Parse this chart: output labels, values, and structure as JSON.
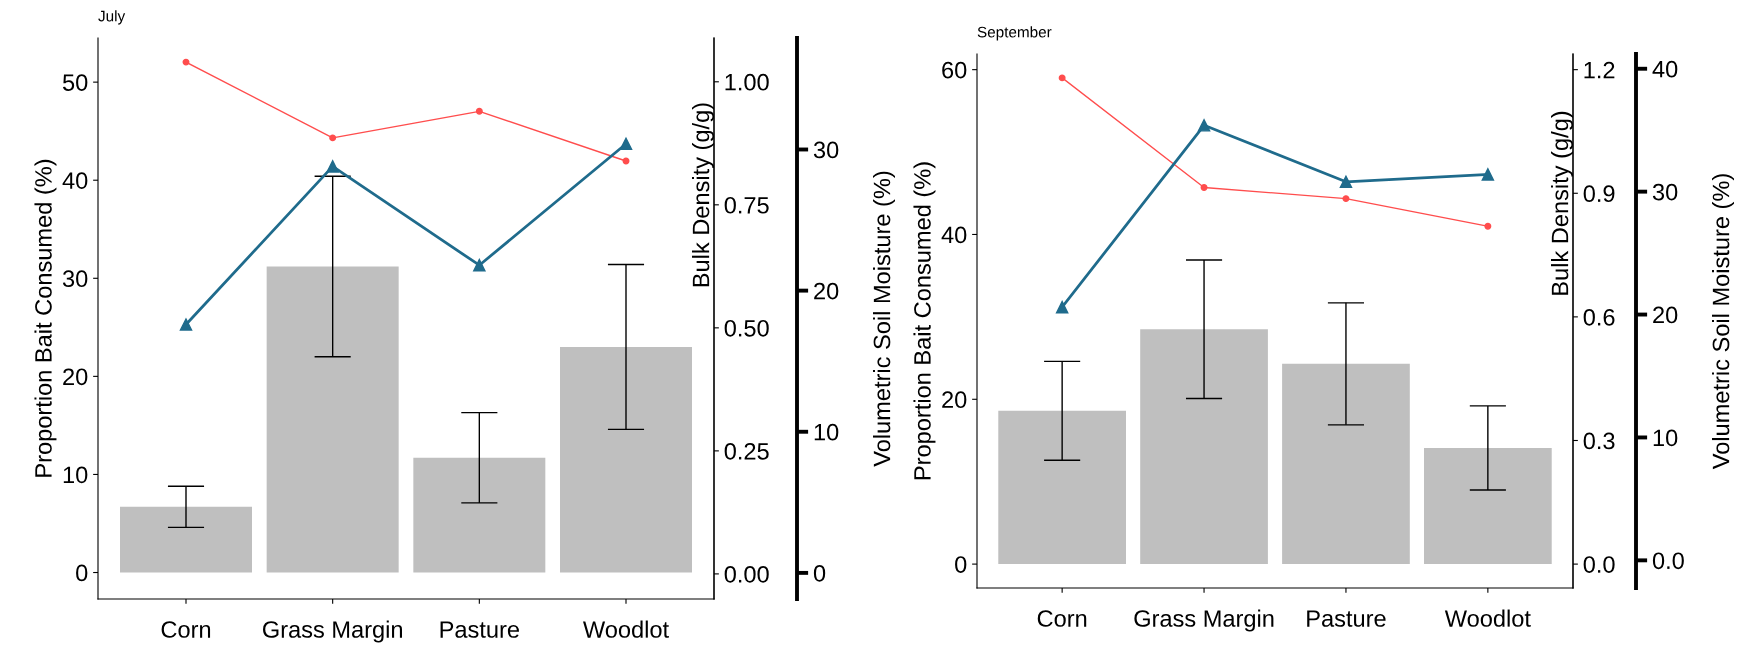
{
  "chart_data": [
    {
      "type": "bar",
      "title": "July",
      "categories": [
        "Corn",
        "Grass Margin",
        "Pasture",
        "Woodlot"
      ],
      "ylabel": "Proportion Bait Consumed (%)",
      "y2label": "Bulk Density (g/g)",
      "y3label": "Volumetric Soil Moisture (%)",
      "ylim": [
        -2.7,
        54.5
      ],
      "yticks": [
        0,
        10,
        20,
        30,
        40,
        50
      ],
      "y2lim": [
        -0.051,
        1.089
      ],
      "y2ticks": [
        {
          "value": 0,
          "label": "0.00"
        },
        {
          "value": 0.25,
          "label": "0.25"
        },
        {
          "value": 0.5,
          "label": "0.50"
        },
        {
          "value": 0.75,
          "label": "0.75"
        },
        {
          "value": 1,
          "label": "1.00"
        }
      ],
      "y3lim": [
        -1.85,
        37.9
      ],
      "y3ticks": [
        0,
        10,
        20,
        30
      ],
      "series": [
        {
          "color": "#bfbfbf",
          "values": [
            6.7,
            31.2,
            11.7,
            23.0
          ],
          "errors": [
            2.1,
            9.2,
            4.6,
            8.4
          ]
        },
        {
          "type": "line",
          "axis": "y2",
          "color": "#ff4d4d",
          "marker": "circle",
          "values": [
            1.04,
            0.886,
            0.94,
            0.839
          ]
        },
        {
          "type": "line",
          "axis": "y3",
          "color": "#1f6b8c",
          "marker": "triangle",
          "values": [
            17.6,
            28.8,
            21.8,
            30.4
          ]
        }
      ]
    },
    {
      "type": "bar",
      "title": "September",
      "categories": [
        "Corn",
        "Grass Margin",
        "Pasture",
        "Woodlot"
      ],
      "ylabel": "Proportion Bait Consumed (%)",
      "y2label": "Bulk Density (g/g)",
      "y3label": "Volumetric Soil Moisture (%)",
      "ylim": [
        -2.9,
        61.9
      ],
      "yticks": [
        0,
        20,
        40,
        60
      ],
      "y2lim": [
        -0.058,
        1.238
      ],
      "y2ticks": [
        {
          "value": 0,
          "label": "0.0"
        },
        {
          "value": 0.3,
          "label": "0.3"
        },
        {
          "value": 0.6,
          "label": "0.6"
        },
        {
          "value": 0.9,
          "label": "0.9"
        },
        {
          "value": 1.2,
          "label": "1.2"
        }
      ],
      "y3lim": [
        -2.25,
        41.2
      ],
      "y3ticks": [
        {
          "value": 0,
          "label": "0.0"
        },
        10,
        20,
        30,
        40
      ],
      "series": [
        {
          "color": "#bfbfbf",
          "values": [
            18.6,
            28.5,
            24.3,
            14.1
          ],
          "errors": [
            6.0,
            8.4,
            7.4,
            5.1
          ]
        },
        {
          "type": "line",
          "axis": "y2",
          "color": "#ff4d4d",
          "marker": "circle",
          "values": [
            1.18,
            0.914,
            0.887,
            0.82
          ]
        },
        {
          "type": "line",
          "axis": "y3",
          "color": "#1f6b8c",
          "marker": "triangle",
          "values": [
            20.6,
            35.4,
            30.8,
            31.4
          ]
        }
      ]
    }
  ]
}
